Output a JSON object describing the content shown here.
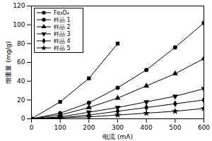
{
  "chart_data": {
    "type": "line",
    "xlabel": "电流 (mA)",
    "ylabel": "增重量 (mg/g)",
    "x": [
      0,
      100,
      200,
      300,
      400,
      500,
      600
    ],
    "xlim": [
      0,
      600
    ],
    "xticks": [
      0,
      100,
      200,
      300,
      400,
      500,
      600
    ],
    "ylim": [
      0,
      120
    ],
    "yticks": [
      0,
      20,
      40,
      60,
      80,
      100,
      120
    ],
    "grid": false,
    "legend": "top-left",
    "series": [
      {
        "name": "Fe₃O₄",
        "color": "#000000",
        "marker": "square",
        "line_style": "solid",
        "values": [
          0,
          18,
          43,
          80,
          null,
          null,
          null
        ]
      },
      {
        "name": "样品 1",
        "color": "#000000",
        "marker": "circle",
        "line_style": "solid",
        "values": [
          0,
          6,
          17,
          33,
          52,
          76,
          102
        ]
      },
      {
        "name": "样品 2",
        "color": "#000000",
        "marker": "triangle-up",
        "line_style": "solid",
        "values": [
          0,
          4,
          12,
          22,
          35,
          48,
          64
        ]
      },
      {
        "name": "样品 3",
        "color": "#000000",
        "marker": "triangle-down",
        "line_style": "solid",
        "values": [
          0,
          2,
          7,
          12,
          18,
          24,
          32
        ]
      },
      {
        "name": "样品 4",
        "color": "#000000",
        "marker": "diamond",
        "line_style": "solid",
        "values": [
          0,
          1,
          4,
          8,
          12,
          16,
          20
        ]
      },
      {
        "name": "样品 5",
        "color": "#000000",
        "marker": "star",
        "line_style": "solid",
        "values": [
          0,
          1,
          2,
          4,
          6,
          8,
          11
        ]
      }
    ]
  }
}
